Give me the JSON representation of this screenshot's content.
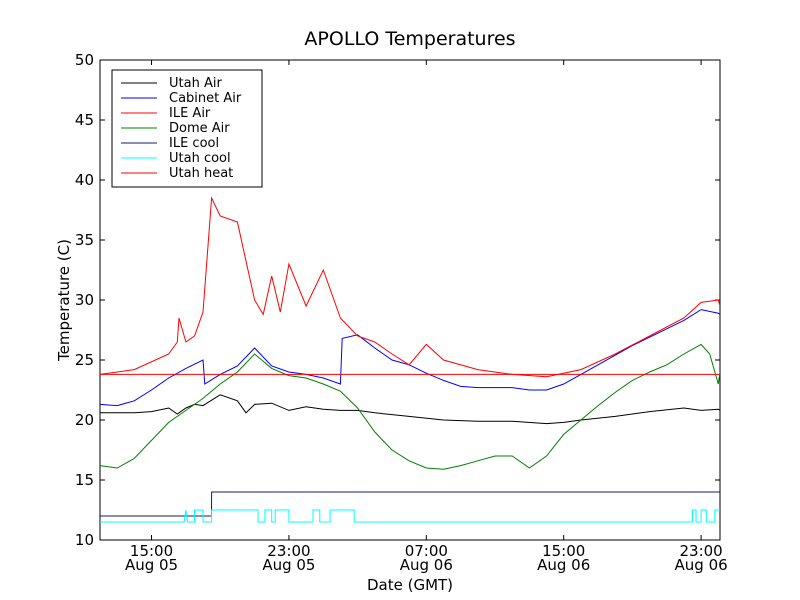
{
  "chart_data": {
    "type": "line",
    "title": "APOLLO Temperatures",
    "xlabel": "Date (GMT)",
    "ylabel": "Temperature (C)",
    "ylim": [
      10,
      50
    ],
    "xlim_hours": [
      0,
      36.1
    ],
    "yticks": [
      10,
      15,
      20,
      25,
      30,
      35,
      40,
      45,
      50
    ],
    "xticks": [
      {
        "hour": 3,
        "time": "15:00",
        "date": "Aug 05"
      },
      {
        "hour": 11,
        "time": "23:00",
        "date": "Aug 05"
      },
      {
        "hour": 19,
        "time": "07:00",
        "date": "Aug 06"
      },
      {
        "hour": 27,
        "time": "15:00",
        "date": "Aug 06"
      },
      {
        "hour": 35,
        "time": "23:00",
        "date": "Aug 06"
      }
    ],
    "legend_position": "top-left",
    "series": [
      {
        "name": "Utah Air",
        "color": "#000000",
        "x": [
          0,
          2,
          3,
          4,
          4.5,
          5,
          5.5,
          6,
          7,
          8,
          8.5,
          9,
          10,
          11,
          12,
          13,
          14,
          15,
          16,
          18,
          20,
          22,
          24,
          26,
          27,
          28,
          30,
          32,
          34,
          35,
          36,
          36.1
        ],
        "y": [
          20.6,
          20.6,
          20.7,
          21.0,
          20.5,
          21.0,
          21.3,
          21.2,
          22.1,
          21.6,
          20.6,
          21.3,
          21.4,
          20.8,
          21.1,
          20.9,
          20.8,
          20.8,
          20.6,
          20.3,
          20.0,
          19.9,
          19.9,
          19.7,
          19.8,
          20.0,
          20.3,
          20.7,
          21.0,
          20.8,
          20.9,
          20.8
        ]
      },
      {
        "name": "Cabinet Air",
        "color": "#0000ff",
        "x": [
          0,
          1,
          2,
          3,
          4,
          5,
          6,
          6.1,
          7,
          8,
          9,
          10,
          11,
          12,
          13,
          14,
          14.1,
          15,
          16,
          17,
          18,
          19,
          20,
          21,
          22,
          23,
          24,
          25,
          26,
          27,
          28,
          29,
          30,
          31,
          32,
          33,
          34,
          35,
          36,
          36.1
        ],
        "y": [
          21.3,
          21.2,
          21.6,
          22.5,
          23.5,
          24.3,
          25.0,
          23.0,
          23.8,
          24.5,
          26.0,
          24.5,
          24.0,
          23.8,
          23.5,
          23.0,
          26.8,
          27.1,
          26.0,
          25.0,
          24.6,
          23.9,
          23.3,
          22.8,
          22.7,
          22.7,
          22.7,
          22.5,
          22.5,
          23.0,
          23.8,
          24.6,
          25.4,
          26.2,
          26.9,
          27.6,
          28.3,
          29.2,
          28.9,
          28.8
        ]
      },
      {
        "name": "ILE Air",
        "color": "#ff0000",
        "x": [
          0,
          2,
          4,
          4.5,
          4.6,
          5,
          5.5,
          6,
          6.5,
          7,
          8,
          9,
          9.5,
          10,
          10.5,
          11,
          12,
          13,
          14,
          15,
          16,
          17,
          18,
          19,
          20,
          22,
          24,
          26,
          28,
          30,
          32,
          34,
          35,
          36,
          36.1
        ],
        "y": [
          23.8,
          24.2,
          25.5,
          26.5,
          28.5,
          26.5,
          27.0,
          29.0,
          38.5,
          37.0,
          36.5,
          30.0,
          28.8,
          32.0,
          29.0,
          33.0,
          29.5,
          32.5,
          28.5,
          27.0,
          26.5,
          25.5,
          24.6,
          26.3,
          25.0,
          24.2,
          23.8,
          23.6,
          24.2,
          25.5,
          27.0,
          28.5,
          29.8,
          30.0,
          29.5
        ]
      },
      {
        "name": "Dome Air",
        "color": "#008000",
        "x": [
          0,
          1,
          2,
          3,
          4,
          5,
          6,
          7,
          8,
          9,
          10,
          11,
          12,
          13,
          14,
          15,
          16,
          17,
          18,
          19,
          20,
          21,
          22,
          23,
          24,
          25,
          26,
          27,
          28,
          29,
          30,
          31,
          32,
          33,
          34,
          35,
          35.5,
          36,
          36.1
        ],
        "y": [
          16.2,
          16.0,
          16.8,
          18.3,
          19.8,
          20.8,
          21.8,
          23.0,
          24.0,
          25.5,
          24.3,
          23.7,
          23.5,
          23.0,
          22.4,
          21.0,
          19.0,
          17.5,
          16.6,
          16.0,
          15.9,
          16.2,
          16.6,
          17.0,
          17.0,
          16.0,
          17.0,
          18.8,
          20.0,
          21.2,
          22.3,
          23.3,
          24.0,
          24.6,
          25.5,
          26.3,
          25.5,
          23.0,
          24.0
        ]
      },
      {
        "name": "ILE cool",
        "color": "#191970",
        "x": [
          0,
          6.49,
          6.5,
          36.1
        ],
        "y": [
          12.0,
          12.0,
          14.0,
          14.0
        ]
      },
      {
        "name": "Utah cool",
        "color": "#00ffff",
        "x": [
          0,
          4.9,
          5.0,
          5.1,
          5.5,
          5.5,
          6.0,
          6.0,
          6.5,
          6.5,
          9.2,
          9.2,
          9.6,
          9.6,
          10.0,
          10.0,
          10.2,
          10.2,
          11.0,
          11.0,
          12.4,
          12.4,
          12.8,
          12.8,
          13.4,
          13.4,
          14.8,
          14.8,
          34.5,
          34.5,
          34.7,
          34.7,
          35.0,
          35.0,
          35.3,
          35.3,
          35.8,
          35.8,
          36.1
        ],
        "y": [
          11.5,
          11.5,
          12.5,
          11.5,
          11.5,
          12.5,
          12.5,
          11.5,
          11.5,
          12.5,
          12.5,
          11.5,
          11.5,
          12.5,
          12.5,
          11.5,
          11.5,
          12.5,
          12.5,
          11.5,
          11.5,
          12.5,
          12.5,
          11.5,
          11.5,
          12.5,
          12.5,
          11.5,
          11.5,
          12.5,
          12.5,
          11.5,
          11.5,
          12.5,
          12.5,
          11.5,
          11.5,
          12.5,
          12.5
        ]
      },
      {
        "name": "Utah heat",
        "color": "#ff0000",
        "x": [
          0,
          36.1
        ],
        "y": [
          23.8,
          23.8
        ]
      }
    ]
  }
}
